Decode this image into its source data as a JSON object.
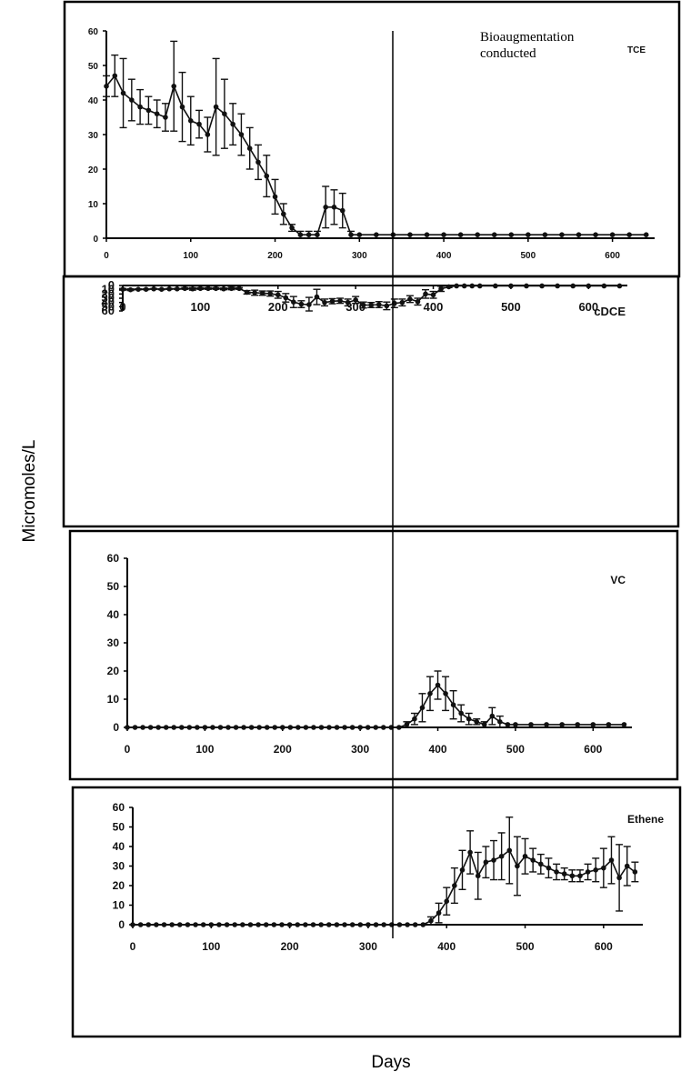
{
  "labels": {
    "ylabel": "Micromoles/L",
    "xlabel": "Days",
    "annotation_line1": "Bioaugmentation",
    "annotation_line2": "conducted"
  },
  "chart_data": [
    {
      "type": "line",
      "title": "TCE",
      "xlim": [
        0,
        650
      ],
      "ylim": [
        0,
        60
      ],
      "xticks": [
        0,
        100,
        200,
        300,
        400,
        500,
        600
      ],
      "yticks": [
        0,
        10,
        20,
        30,
        40,
        50,
        60
      ],
      "series": [
        {
          "x": [
            0,
            10,
            20,
            30,
            40,
            50,
            60,
            70,
            80,
            90,
            100,
            110,
            120,
            130,
            140,
            150,
            160,
            170,
            180,
            190,
            200,
            210,
            220,
            230,
            240,
            250,
            260,
            270,
            280,
            290,
            300,
            320,
            340,
            360,
            380,
            400,
            420,
            440,
            460,
            480,
            500,
            520,
            540,
            560,
            580,
            600,
            620,
            640
          ],
          "y": [
            44,
            47,
            42,
            40,
            38,
            37,
            36,
            35,
            44,
            38,
            34,
            33,
            30,
            38,
            36,
            33,
            30,
            26,
            22,
            18,
            12,
            7,
            3,
            1,
            1,
            1,
            9,
            9,
            8,
            1,
            1,
            1,
            1,
            1,
            1,
            1,
            1,
            1,
            1,
            1,
            1,
            1,
            1,
            1,
            1,
            1,
            1,
            1
          ],
          "err": [
            3,
            6,
            10,
            6,
            5,
            4,
            4,
            4,
            13,
            10,
            7,
            4,
            5,
            14,
            10,
            6,
            6,
            6,
            5,
            6,
            5,
            3,
            1,
            1,
            1,
            1,
            6,
            5,
            5,
            1,
            0,
            0,
            0,
            0,
            0,
            0,
            0,
            0,
            0,
            0,
            0,
            0,
            0,
            0,
            0,
            0,
            0,
            0
          ]
        }
      ]
    },
    {
      "type": "line",
      "title": "cDCE",
      "xlim": [
        0,
        650
      ],
      "ylim": [
        0,
        60
      ],
      "xticks": [
        0,
        100,
        200,
        300,
        400,
        500,
        600
      ],
      "yticks": [
        0,
        10,
        20,
        30,
        40,
        50,
        60
      ],
      "series": [
        {
          "x": [
            0,
            10,
            20,
            30,
            40,
            50,
            60,
            70,
            80,
            90,
            100,
            110,
            120,
            130,
            140,
            150,
            160,
            170,
            180,
            190,
            200,
            210,
            220,
            230,
            240,
            250,
            260,
            270,
            280,
            290,
            300,
            310,
            320,
            330,
            340,
            350,
            360,
            370,
            380,
            390,
            400,
            410,
            420,
            430,
            440,
            450,
            460,
            480,
            500,
            520,
            540,
            560,
            580,
            600,
            620,
            640
          ],
          "y": [
            9,
            10,
            9,
            9,
            8,
            9,
            8,
            8,
            7,
            8,
            7,
            7,
            7,
            8,
            7,
            7,
            16,
            17,
            18,
            19,
            22,
            29,
            39,
            44,
            45,
            27,
            40,
            37,
            36,
            40,
            34,
            46,
            46,
            45,
            48,
            42,
            40,
            32,
            38,
            20,
            22,
            8,
            3,
            1,
            1,
            1,
            1,
            1,
            1,
            1,
            1,
            1,
            1,
            1,
            1,
            1
          ],
          "err": [
            2,
            2,
            1,
            1,
            1,
            1,
            1,
            1,
            2,
            3,
            2,
            2,
            2,
            2,
            3,
            2,
            4,
            6,
            5,
            6,
            8,
            10,
            13,
            8,
            17,
            18,
            8,
            6,
            6,
            8,
            8,
            7,
            6,
            7,
            9,
            10,
            8,
            8,
            8,
            10,
            8,
            6,
            2,
            0,
            0,
            0,
            0,
            0,
            0,
            0,
            0,
            0,
            0,
            0,
            0,
            0
          ]
        }
      ]
    },
    {
      "type": "line",
      "title": "VC",
      "xlim": [
        0,
        650
      ],
      "ylim": [
        0,
        60
      ],
      "xticks": [
        0,
        100,
        200,
        300,
        400,
        500,
        600
      ],
      "yticks": [
        0,
        10,
        20,
        30,
        40,
        50,
        60
      ],
      "series": [
        {
          "x": [
            0,
            10,
            20,
            30,
            40,
            50,
            60,
            70,
            80,
            90,
            100,
            110,
            120,
            130,
            140,
            150,
            160,
            170,
            180,
            190,
            200,
            210,
            220,
            230,
            240,
            250,
            260,
            270,
            280,
            290,
            300,
            310,
            320,
            330,
            340,
            350,
            360,
            370,
            380,
            390,
            400,
            410,
            420,
            430,
            440,
            450,
            460,
            470,
            480,
            490,
            500,
            520,
            540,
            560,
            580,
            600,
            620,
            640
          ],
          "y": [
            0,
            0,
            0,
            0,
            0,
            0,
            0,
            0,
            0,
            0,
            0,
            0,
            0,
            0,
            0,
            0,
            0,
            0,
            0,
            0,
            0,
            0,
            0,
            0,
            0,
            0,
            0,
            0,
            0,
            0,
            0,
            0,
            0,
            0,
            0,
            0,
            1,
            3,
            7,
            12,
            15,
            12,
            8,
            5,
            3,
            2,
            1,
            4,
            2,
            1,
            1,
            1,
            1,
            1,
            1,
            1,
            1,
            1
          ],
          "err": [
            0,
            0,
            0,
            0,
            0,
            0,
            0,
            0,
            0,
            0,
            0,
            0,
            0,
            0,
            0,
            0,
            0,
            0,
            0,
            0,
            0,
            0,
            0,
            0,
            0,
            0,
            0,
            0,
            0,
            0,
            0,
            0,
            0,
            0,
            0,
            0,
            1,
            2,
            5,
            6,
            5,
            6,
            5,
            3,
            2,
            1,
            1,
            3,
            2,
            0,
            0,
            0,
            0,
            0,
            0,
            0,
            0,
            0
          ]
        }
      ]
    },
    {
      "type": "line",
      "title": "Ethene",
      "xlim": [
        0,
        650
      ],
      "ylim": [
        0,
        60
      ],
      "xticks": [
        0,
        100,
        200,
        300,
        400,
        500,
        600
      ],
      "yticks": [
        0,
        10,
        20,
        30,
        40,
        50,
        60
      ],
      "series": [
        {
          "x": [
            0,
            10,
            20,
            30,
            40,
            50,
            60,
            70,
            80,
            90,
            100,
            110,
            120,
            130,
            140,
            150,
            160,
            170,
            180,
            190,
            200,
            210,
            220,
            230,
            240,
            250,
            260,
            270,
            280,
            290,
            300,
            310,
            320,
            330,
            340,
            350,
            360,
            370,
            380,
            390,
            400,
            410,
            420,
            430,
            440,
            450,
            460,
            470,
            480,
            490,
            500,
            510,
            520,
            530,
            540,
            550,
            560,
            570,
            580,
            590,
            600,
            610,
            620,
            630,
            640
          ],
          "y": [
            0,
            0,
            0,
            0,
            0,
            0,
            0,
            0,
            0,
            0,
            0,
            0,
            0,
            0,
            0,
            0,
            0,
            0,
            0,
            0,
            0,
            0,
            0,
            0,
            0,
            0,
            0,
            0,
            0,
            0,
            0,
            0,
            0,
            0,
            0,
            0,
            0,
            0,
            2,
            6,
            12,
            20,
            28,
            37,
            25,
            32,
            33,
            35,
            38,
            30,
            35,
            33,
            31,
            29,
            27,
            26,
            25,
            25,
            27,
            28,
            29,
            33,
            24,
            30,
            27
          ],
          "err": [
            0,
            0,
            0,
            0,
            0,
            0,
            0,
            0,
            0,
            0,
            0,
            0,
            0,
            0,
            0,
            0,
            0,
            0,
            0,
            0,
            0,
            0,
            0,
            0,
            0,
            0,
            0,
            0,
            0,
            0,
            0,
            0,
            0,
            0,
            0,
            0,
            0,
            0,
            2,
            5,
            7,
            9,
            10,
            11,
            12,
            8,
            10,
            12,
            17,
            15,
            9,
            6,
            5,
            5,
            4,
            3,
            3,
            3,
            4,
            6,
            10,
            12,
            17,
            10,
            5
          ]
        }
      ]
    }
  ]
}
